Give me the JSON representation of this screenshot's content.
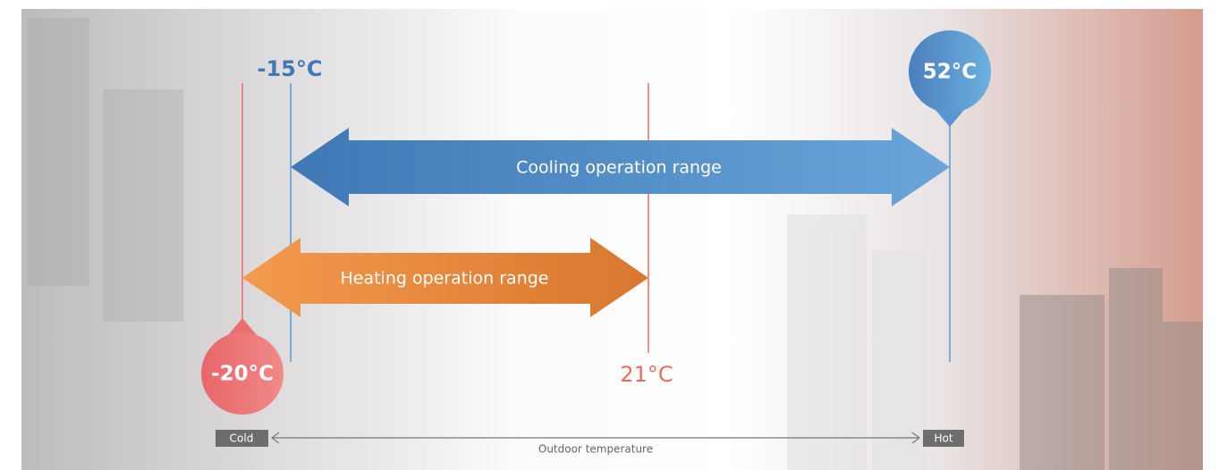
{
  "labels": {
    "cooling_min": "-15°C",
    "cooling_max": "52°C",
    "heating_min": "-20°C",
    "heating_max": "21°C"
  },
  "arrows": {
    "cooling": "Cooling operation range",
    "heating": "Heating operation range"
  },
  "axis": {
    "cold": "Cold",
    "hot": "Hot",
    "label": "Outdoor temperature"
  }
}
